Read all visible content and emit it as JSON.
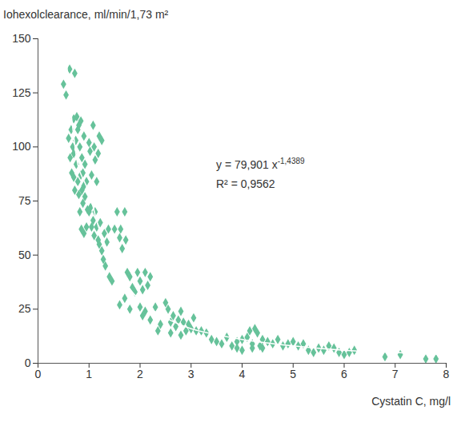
{
  "chart_data": {
    "type": "scatter",
    "x_label": "Cystatin C, mg/l",
    "y_label": "Iohexolclearance, ml/min/1,73 m²",
    "xlim": [
      0,
      8
    ],
    "xticks": [
      0,
      1,
      2,
      3,
      4,
      5,
      6,
      7,
      8
    ],
    "ylim": [
      0,
      150
    ],
    "yticks": [
      0,
      25,
      50,
      75,
      100,
      125,
      150
    ],
    "grid": false,
    "annotations": [
      {
        "text": "y = 79,901 x",
        "superscript": "-1,4389"
      },
      {
        "text": "R² = 0,9562"
      }
    ],
    "series": [
      {
        "type": "scatter",
        "color": "#66c29a",
        "marker": "diamond",
        "x": [
          0.5,
          0.55,
          0.6,
          0.62,
          0.65,
          0.68,
          0.7,
          0.72,
          0.63,
          0.66,
          0.7,
          0.74,
          0.76,
          0.78,
          0.8,
          0.82,
          0.84,
          0.86,
          0.88,
          0.9,
          0.92,
          0.7,
          0.72,
          0.75,
          0.78,
          0.8,
          0.82,
          0.84,
          0.86,
          0.88,
          0.9,
          0.92,
          0.95,
          0.97,
          1.0,
          1.02,
          1.05,
          1.08,
          1.1,
          1.12,
          1.15,
          1.18,
          1.2,
          1.25,
          1.0,
          1.03,
          1.05,
          1.08,
          1.1,
          1.12,
          1.15,
          1.18,
          1.2,
          1.22,
          1.25,
          0.85,
          0.9,
          0.95,
          1.28,
          1.3,
          1.32,
          1.35,
          1.38,
          1.4,
          1.45,
          1.5,
          1.55,
          1.6,
          1.62,
          1.65,
          1.7,
          1.72,
          1.75,
          1.8,
          1.85,
          1.9,
          1.95,
          2.0,
          2.05,
          2.1,
          2.15,
          2.2,
          1.6,
          1.7,
          1.8,
          2.0,
          2.05,
          2.1,
          2.2,
          2.3,
          2.35,
          2.4,
          2.5,
          2.55,
          2.6,
          2.65,
          2.7,
          2.75,
          2.8,
          2.85,
          2.9,
          2.95,
          3.0,
          3.05,
          3.1,
          2.6,
          2.8,
          3.2,
          3.3,
          3.4,
          3.5,
          3.6,
          3.7,
          3.8,
          3.9,
          4.0,
          4.1,
          4.15,
          4.2,
          4.25,
          4.3,
          4.35,
          4.4,
          4.5,
          3.9,
          4.0,
          4.2,
          4.4,
          4.6,
          4.7,
          4.8,
          4.9,
          5.0,
          5.1,
          5.2,
          5.3,
          5.4,
          5.5,
          5.6,
          5.7,
          5.8,
          5.9,
          6.0,
          6.1,
          6.2,
          6.8,
          7.1,
          7.6,
          7.8
        ],
        "values": [
          129,
          124,
          104,
          136,
          108,
          100,
          113,
          134,
          95,
          88,
          97,
          103,
          114,
          108,
          110,
          100,
          112,
          95,
          88,
          105,
          92,
          86,
          80,
          92,
          84,
          78,
          70,
          87,
          80,
          74,
          82,
          77,
          84,
          71,
          102,
          98,
          87,
          110,
          100,
          94,
          84,
          97,
          105,
          103,
          70,
          72,
          63,
          66,
          59,
          70,
          63,
          57,
          55,
          65,
          52,
          62,
          60,
          63,
          48,
          60,
          45,
          56,
          62,
          40,
          38,
          62,
          70,
          58,
          62,
          53,
          70,
          57,
          42,
          40,
          35,
          33,
          42,
          38,
          34,
          42,
          36,
          40,
          27,
          30,
          25,
          26,
          22,
          24,
          20,
          26,
          15,
          18,
          28,
          25,
          19,
          22,
          17,
          20,
          24,
          19,
          15,
          18,
          16,
          21,
          15,
          14,
          13,
          15,
          14,
          11,
          10,
          9,
          12,
          8,
          10,
          11,
          12,
          15,
          9,
          16,
          14,
          8,
          11,
          10,
          7,
          6,
          7,
          7,
          9,
          11,
          8,
          9,
          10,
          8,
          9,
          6,
          5,
          7,
          6,
          8,
          7,
          5,
          4,
          5,
          6,
          3,
          4,
          2,
          2
        ]
      },
      {
        "type": "line",
        "color": "#ffffff",
        "line_style": "solid",
        "x": [
          0.53,
          0.6,
          0.7,
          0.8,
          1,
          1.2,
          1.5,
          2,
          2.5,
          3,
          4,
          5,
          6,
          7,
          8
        ],
        "values": [
          150,
          128,
          105,
          90,
          79,
          62,
          45,
          29,
          21,
          16,
          11,
          8,
          6,
          5,
          4
        ]
      }
    ]
  }
}
